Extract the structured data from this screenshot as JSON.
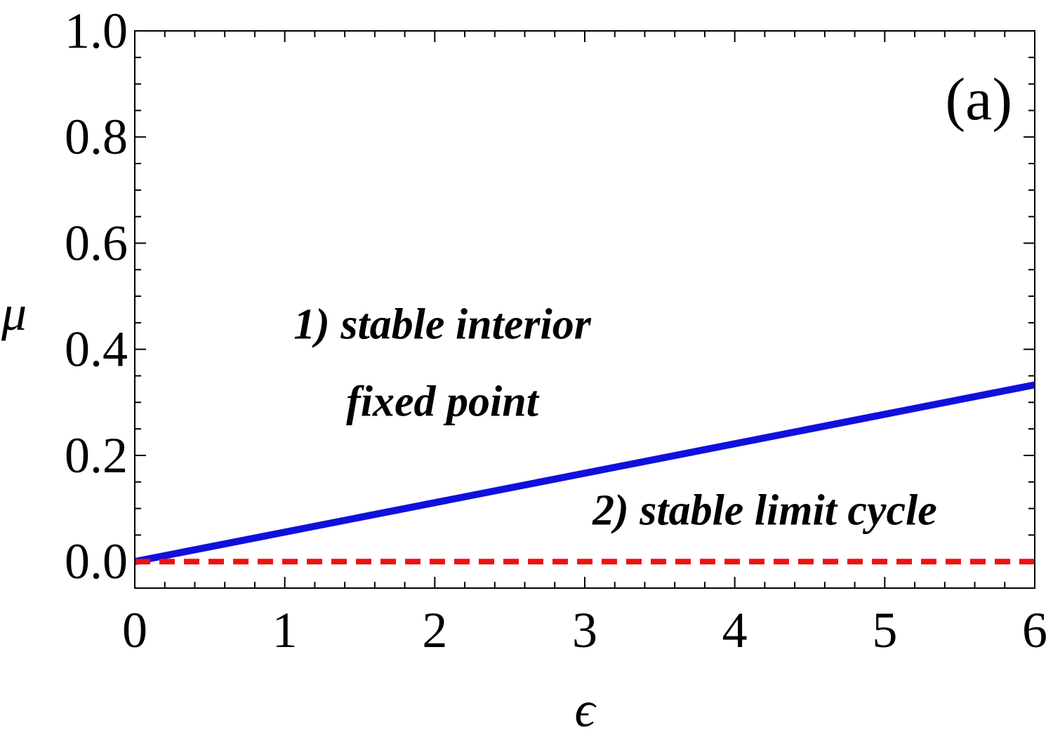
{
  "chart_data": {
    "type": "line",
    "panel_label": "(a)",
    "xlabel": "ϵ",
    "ylabel": "μ",
    "xlim": [
      0,
      6
    ],
    "ylim": [
      -0.05,
      1.0
    ],
    "xticks": [
      0,
      1,
      2,
      3,
      4,
      5,
      6
    ],
    "xtick_labels": [
      "0",
      "1",
      "2",
      "3",
      "4",
      "5",
      "6"
    ],
    "yticks": [
      0.0,
      0.2,
      0.4,
      0.6,
      0.8,
      1.0
    ],
    "ytick_labels": [
      "0.0",
      "0.2",
      "0.4",
      "0.6",
      "0.8",
      "1.0"
    ],
    "grid": false,
    "series": [
      {
        "style": "solid",
        "color": "#1010dd",
        "x": [
          0,
          6
        ],
        "y": [
          0,
          0.333
        ]
      },
      {
        "style": "dashed",
        "color": "#ee1111",
        "x": [
          0,
          6
        ],
        "y": [
          0,
          0
        ]
      }
    ],
    "annotations": [
      {
        "lines": [
          "1) stable interior",
          "fixed point"
        ],
        "x": 2.05,
        "y": 0.42
      },
      {
        "lines": [
          "2) stable limit cycle"
        ],
        "x": 4.2,
        "y": 0.07
      }
    ]
  }
}
